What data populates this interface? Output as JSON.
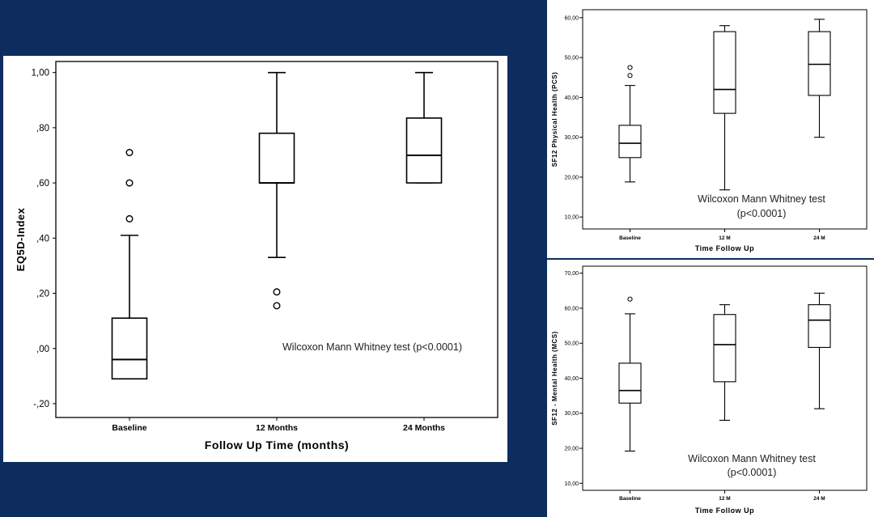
{
  "chart_data": [
    {
      "type": "boxplot",
      "xlabel": "Follow Up Time (months)",
      "ylabel": "EQ5D-Index",
      "categories": [
        "Baseline",
        "12 Months",
        "24 Months"
      ],
      "yticks": [
        -0.2,
        0.0,
        0.2,
        0.4,
        0.6,
        0.8,
        1.0
      ],
      "ytick_labels": [
        "-,20",
        ",00",
        ",20",
        ",40",
        ",60",
        ",80",
        "1,00"
      ],
      "ylim": [
        -0.25,
        1.04
      ],
      "boxes": [
        {
          "category": "Baseline",
          "whisker_low": -0.11,
          "q1": -0.11,
          "median": -0.04,
          "q3": 0.11,
          "whisker_high": 0.41,
          "outliers": [
            0.47,
            0.6,
            0.71
          ]
        },
        {
          "category": "12 Months",
          "whisker_low": 0.33,
          "q1": 0.6,
          "median": 0.6,
          "q3": 0.78,
          "whisker_high": 1.0,
          "outliers": [
            0.155,
            0.205
          ]
        },
        {
          "category": "24 Months",
          "whisker_low": 0.6,
          "q1": 0.6,
          "median": 0.7,
          "q3": 0.835,
          "whisker_high": 1.0,
          "outliers": []
        }
      ],
      "annotation": "Wilcoxon Mann Whitney test (p<0.0001)"
    },
    {
      "type": "boxplot",
      "xlabel": "Time Follow Up",
      "ylabel": "SF12 Physical Health (PCS)",
      "categories": [
        "Baseline",
        "12 M",
        "24 M"
      ],
      "yticks": [
        10,
        20,
        30,
        40,
        50,
        60
      ],
      "ytick_labels": [
        "10,00",
        "20,00",
        "30,00",
        "40,00",
        "50,00",
        "60,00"
      ],
      "ylim": [
        7,
        62
      ],
      "boxes": [
        {
          "category": "Baseline",
          "whisker_low": 18.8,
          "q1": 24.9,
          "median": 28.5,
          "q3": 33.0,
          "whisker_high": 43.0,
          "outliers": [
            45.5,
            47.5
          ]
        },
        {
          "category": "12 M",
          "whisker_low": 16.8,
          "q1": 36.0,
          "median": 42.0,
          "q3": 56.5,
          "whisker_high": 58.0,
          "outliers": []
        },
        {
          "category": "24 M",
          "whisker_low": 30.0,
          "q1": 40.5,
          "median": 48.3,
          "q3": 56.5,
          "whisker_high": 59.6,
          "outliers": []
        }
      ],
      "annotation": [
        "Wilcoxon Mann Whitney test",
        "(p<0.0001)"
      ]
    },
    {
      "type": "boxplot",
      "xlabel": "Time Follow Up",
      "ylabel": "SF12 - Mental Health (MCS)",
      "categories": [
        "Baseline",
        "12 M",
        "24 M"
      ],
      "yticks": [
        10,
        20,
        30,
        40,
        50,
        60,
        70
      ],
      "ytick_labels": [
        "10,00",
        "20,00",
        "30,00",
        "40,00",
        "50,00",
        "60,00",
        "70,00"
      ],
      "ylim": [
        8,
        72
      ],
      "boxes": [
        {
          "category": "Baseline",
          "whisker_low": 19.2,
          "q1": 32.9,
          "median": 36.5,
          "q3": 44.3,
          "whisker_high": 58.4,
          "outliers": [
            62.6
          ]
        },
        {
          "category": "12 M",
          "whisker_low": 28.0,
          "q1": 39.0,
          "median": 49.6,
          "q3": 58.2,
          "whisker_high": 61.0,
          "outliers": []
        },
        {
          "category": "24 M",
          "whisker_low": 31.3,
          "q1": 48.8,
          "median": 56.6,
          "q3": 61.0,
          "whisker_high": 64.3,
          "outliers": []
        }
      ],
      "annotation": [
        "Wilcoxon Mann Whitney test",
        "(p<0.0001)"
      ]
    }
  ]
}
